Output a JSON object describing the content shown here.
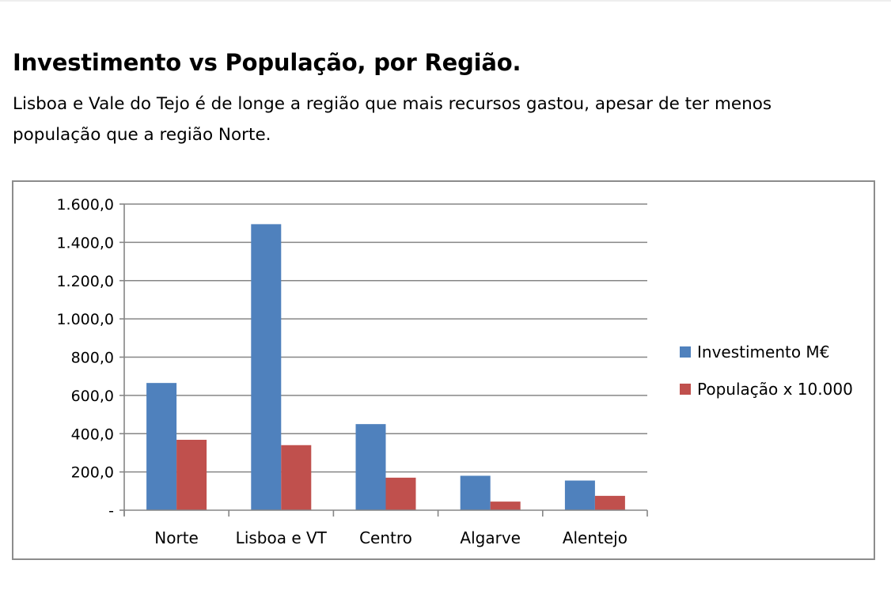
{
  "page": {
    "title": "Investimento vs População, por Região.",
    "subtitle": "Lisboa e Vale do Tejo é de longe a região que mais recursos gastou, apesar de ter menos população que a região Norte."
  },
  "chart_data": {
    "type": "bar",
    "title": "",
    "xlabel": "",
    "ylabel": "",
    "ylim": [
      0,
      1600
    ],
    "yticks": [
      0,
      200,
      400,
      600,
      800,
      1000,
      1200,
      1400,
      1600
    ],
    "ytick_labels": [
      "-",
      "200,0",
      "400,0",
      "600,0",
      "800,0",
      "1.000,0",
      "1.200,0",
      "1.400,0",
      "1.600,0"
    ],
    "grid": true,
    "legend_position": "right",
    "categories": [
      "Norte",
      "Lisboa e VT",
      "Centro",
      "Algarve",
      "Alentejo"
    ],
    "series": [
      {
        "name": "Investimento M€",
        "color": "#4f81bd",
        "values": [
          665,
          1495,
          450,
          180,
          155
        ]
      },
      {
        "name": "População x 10.000",
        "color": "#c0504d",
        "values": [
          368,
          340,
          170,
          45,
          75
        ]
      }
    ]
  }
}
